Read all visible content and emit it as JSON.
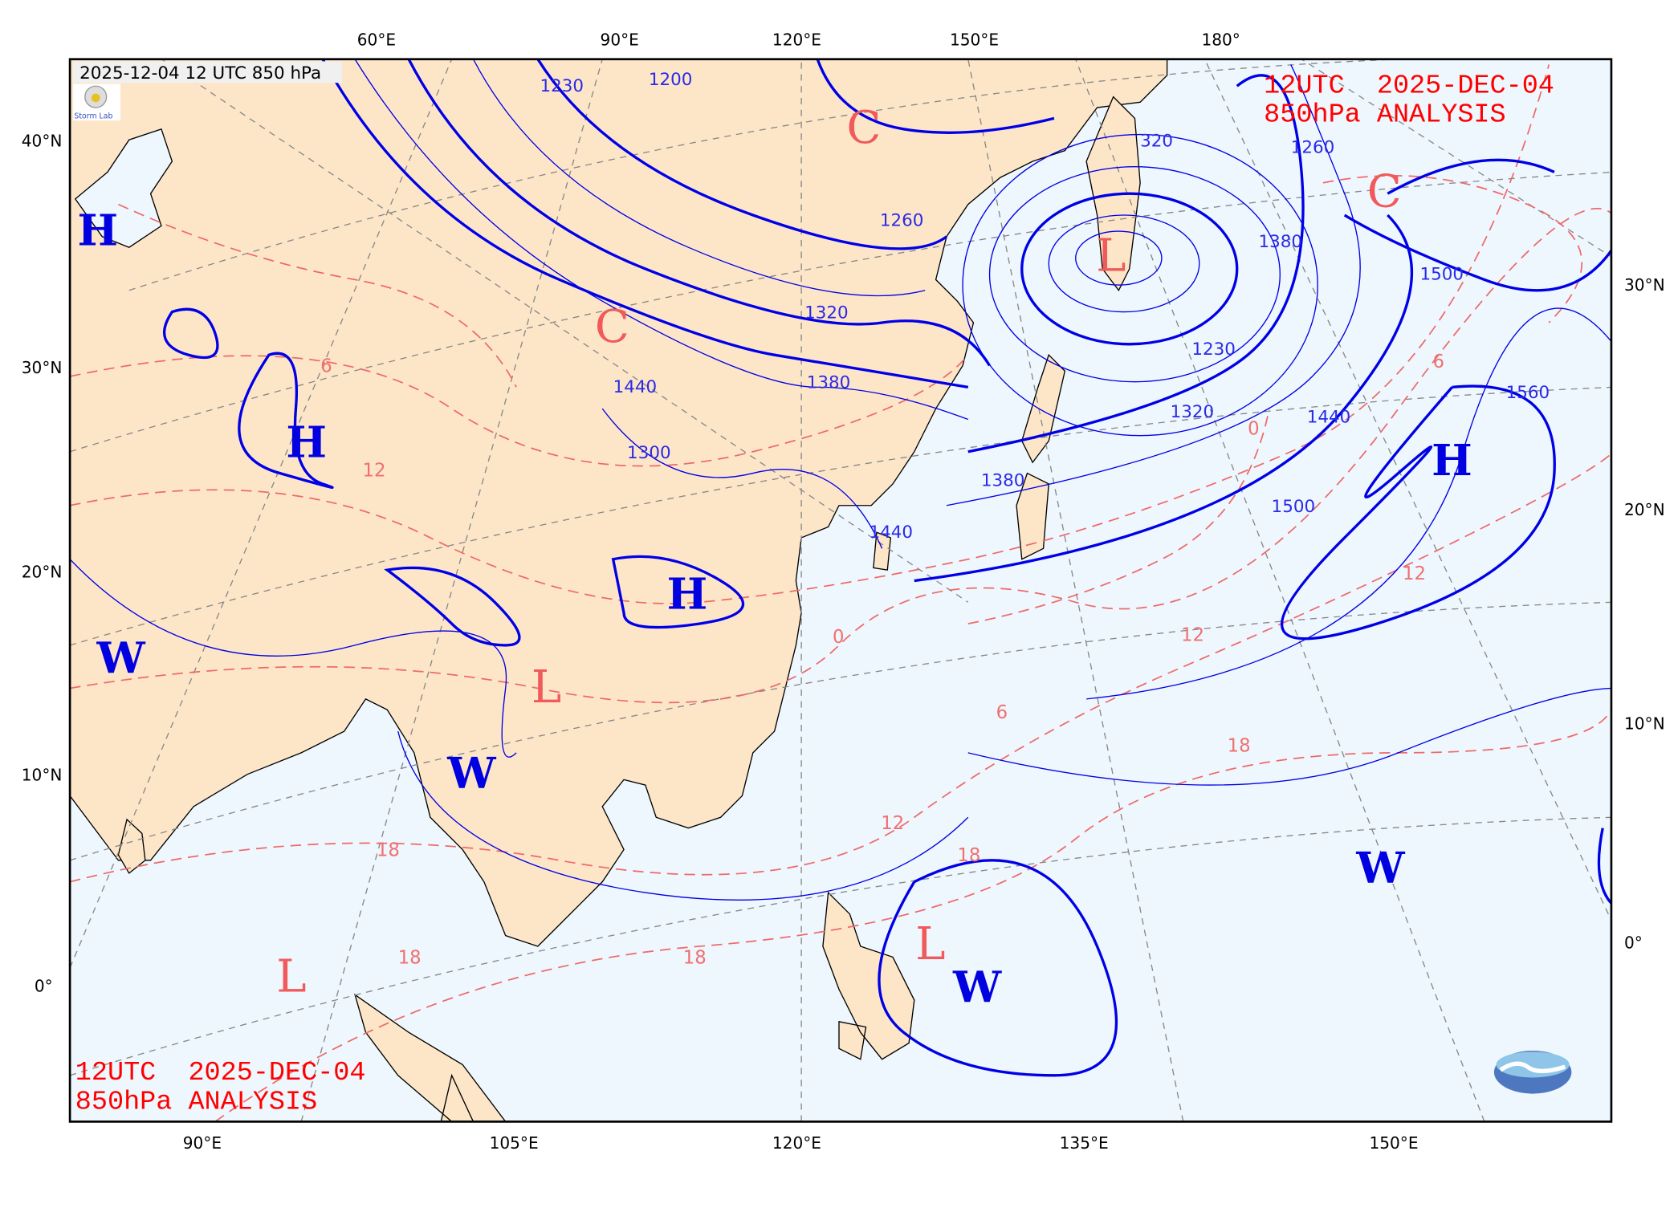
{
  "header": {
    "label": "2025-12-04 12 UTC 850 hPa"
  },
  "titles": {
    "top_right": {
      "line1": "12UTC  2025-DEC-04",
      "line2": "850hPa ANALYSIS"
    },
    "bottom_left": {
      "line1": "12UTC  2025-DEC-04",
      "line2": "850hPa ANALYSIS"
    }
  },
  "axes": {
    "top": [
      "60°E",
      "90°E",
      "120°E",
      "150°E",
      "180°"
    ],
    "bottom": [
      "90°E",
      "105°E",
      "120°E",
      "135°E",
      "150°E"
    ],
    "left": [
      "40°N",
      "30°N",
      "20°N",
      "10°N",
      "0°"
    ],
    "right": [
      "30°N",
      "20°N",
      "10°N",
      "0°"
    ]
  },
  "systems": [
    {
      "t": "H",
      "kind": "high"
    },
    {
      "t": "H",
      "kind": "high"
    },
    {
      "t": "H",
      "kind": "high"
    },
    {
      "t": "H",
      "kind": "high"
    },
    {
      "t": "C",
      "kind": "cold"
    },
    {
      "t": "C",
      "kind": "cold"
    },
    {
      "t": "C",
      "kind": "cold"
    },
    {
      "t": "L",
      "kind": "low"
    },
    {
      "t": "L",
      "kind": "low"
    },
    {
      "t": "L",
      "kind": "low"
    },
    {
      "t": "L",
      "kind": "low"
    },
    {
      "t": "W",
      "kind": "warm"
    },
    {
      "t": "W",
      "kind": "warm"
    },
    {
      "t": "W",
      "kind": "warm"
    },
    {
      "t": "W",
      "kind": "warm"
    }
  ],
  "height_labels": [
    "1230",
    "1200",
    "1260",
    "1260",
    "320",
    "1380",
    "1500",
    "1560",
    "1440",
    "1500",
    "1320",
    "1230",
    "1380",
    "1440",
    "1300",
    "1440",
    "1320",
    "1380"
  ],
  "temp_labels": [
    "12",
    "6",
    "0",
    "6",
    "12",
    "18",
    "12",
    "18",
    "18",
    "18",
    "18",
    "6",
    "12",
    "0"
  ],
  "colors": {
    "land": "#fde6c8",
    "ocean": "#eef7fd",
    "height_contour": "#0000e6",
    "temp_contour": "#ee6a6a",
    "high_label": "#0000e0",
    "low_label": "#f05a5a",
    "title": "#ff0000"
  },
  "logos": {
    "top_left": "Severe Storm Lab",
    "bottom_right": "cwa-wave-logo"
  }
}
